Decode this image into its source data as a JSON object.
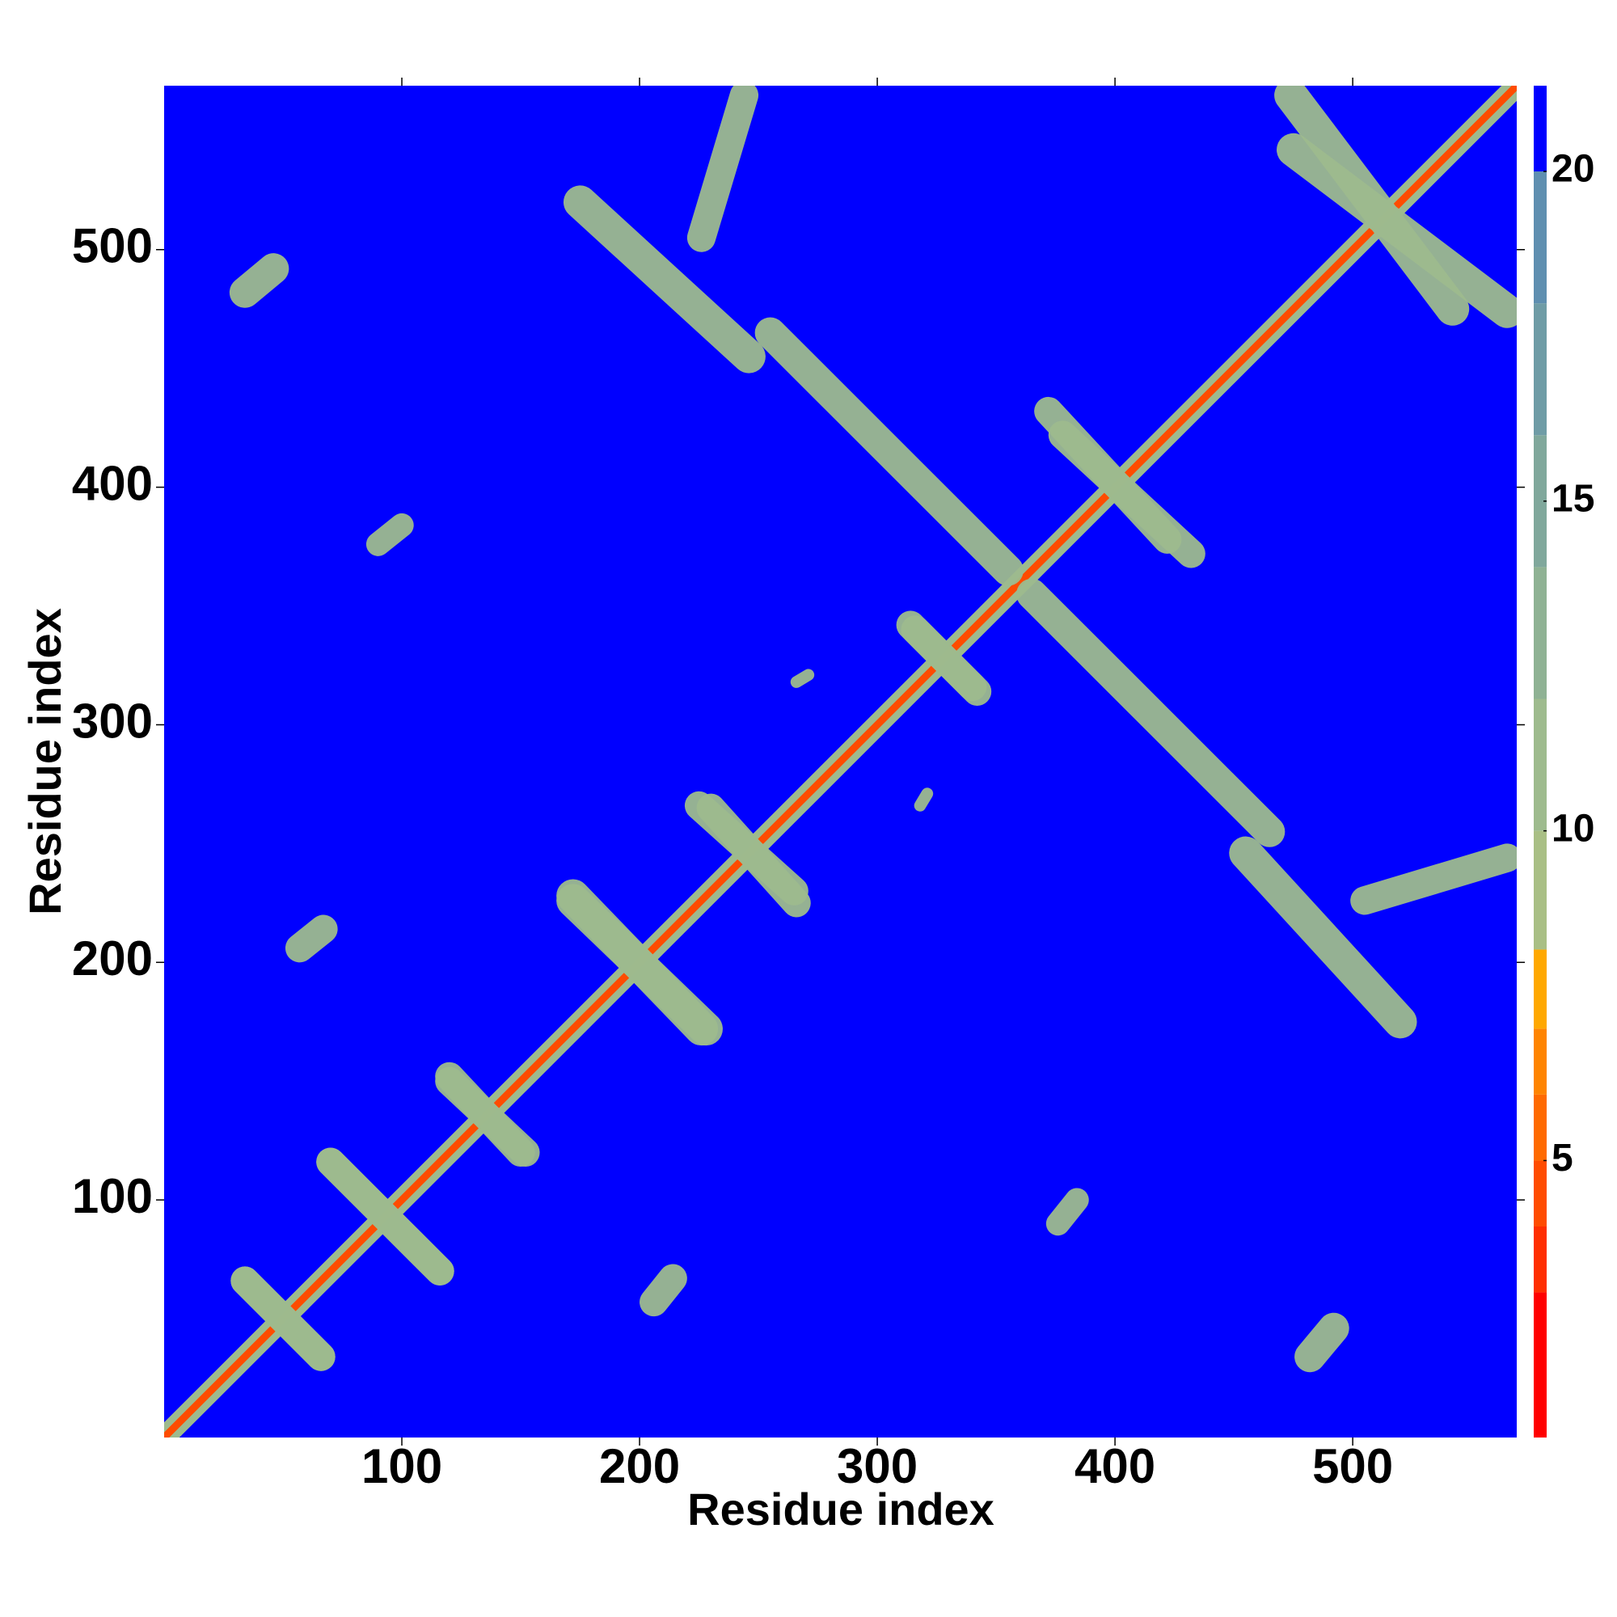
{
  "chart_data": {
    "type": "heatmap",
    "xlabel": "Residue index",
    "ylabel": "Residue index",
    "xlim": [
      0,
      569
    ],
    "ylim": [
      0,
      569
    ],
    "xticks": [
      100,
      200,
      300,
      400,
      500
    ],
    "yticks": [
      100,
      200,
      300,
      400,
      500
    ],
    "symmetric": true,
    "background": 21,
    "colorbar": {
      "clim": [
        0.8,
        21.3
      ],
      "ticks": [
        5,
        10,
        15,
        20
      ],
      "levels": [
        0.8,
        3,
        4,
        5,
        6,
        7,
        8.2,
        10,
        12,
        14,
        16,
        18,
        20,
        21.3
      ],
      "colors": [
        "#ff0000",
        "#ff2e00",
        "#ff4c00",
        "#ff6a00",
        "#ff8400",
        "#ffa800",
        "#a9bf85",
        "#9ebb8e",
        "#8fb294",
        "#80a89c",
        "#6f9ca6",
        "#5f8fb0",
        "#0000ff"
      ]
    },
    "features": [
      {
        "x": [
          1,
          568
        ],
        "y": [
          1,
          568
        ],
        "width": 9,
        "value": 12
      },
      {
        "x": [
          1,
          568
        ],
        "y": [
          1,
          568
        ],
        "width": 3,
        "value": 4.5
      },
      {
        "x": [
          482,
          492
        ],
        "y": [
          34,
          46
        ],
        "width": 13,
        "value": 11
      },
      {
        "x": [
          376,
          384
        ],
        "y": [
          90,
          100
        ],
        "width": 10,
        "value": 11
      },
      {
        "x": [
          206,
          214
        ],
        "y": [
          57,
          67
        ],
        "width": 12,
        "value": 11
      },
      {
        "x": [
          318,
          321
        ],
        "y": [
          266,
          271
        ],
        "width": 5,
        "value": 11
      },
      {
        "x": [
          365,
          465
        ],
        "y": [
          355,
          255
        ],
        "width": 13,
        "value": 12
      },
      {
        "x": [
          378,
          432
        ],
        "y": [
          422,
          372
        ],
        "width": 12,
        "value": 12
      },
      {
        "x": [
          475,
          565
        ],
        "y": [
          542,
          474
        ],
        "width": 14,
        "value": 12
      },
      {
        "x": [
          455,
          520
        ],
        "y": [
          246,
          175
        ],
        "width": 14,
        "value": 12
      },
      {
        "x": [
          505,
          565
        ],
        "y": [
          226,
          244
        ],
        "width": 12,
        "value": 12
      },
      {
        "x": [
          172,
          228
        ],
        "y": [
          226,
          172
        ],
        "width": 14,
        "value": 12
      },
      {
        "x": [
          225,
          265
        ],
        "y": [
          266,
          230
        ],
        "width": 12,
        "value": 12
      },
      {
        "x": [
          314,
          340
        ],
        "y": [
          342,
          316
        ],
        "width": 12,
        "value": 12
      },
      {
        "x": [
          120,
          150
        ],
        "y": [
          152,
          120
        ],
        "width": 12,
        "value": 12
      },
      {
        "x": [
          70,
          116
        ],
        "y": [
          116,
          70
        ],
        "width": 12,
        "value": 12
      },
      {
        "x": [
          34,
          66
        ],
        "y": [
          66,
          34
        ],
        "width": 12,
        "value": 12
      }
    ]
  }
}
